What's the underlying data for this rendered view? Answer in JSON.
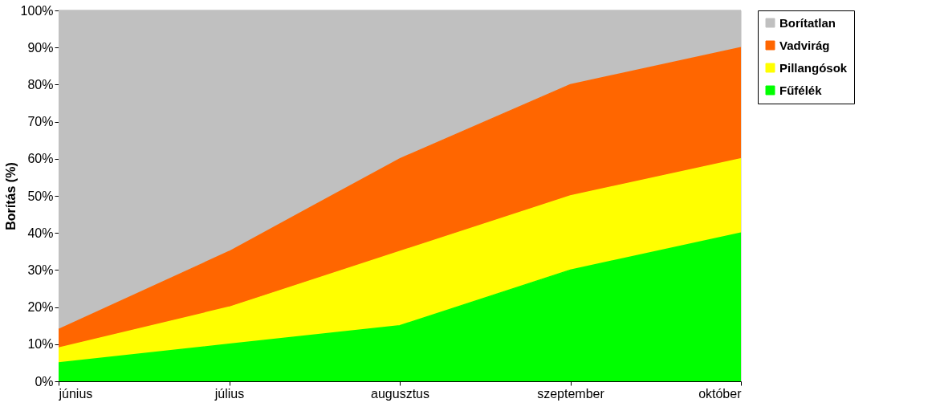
{
  "chart_data": {
    "type": "area",
    "stacked": true,
    "ylabel": "Borítás (%)",
    "categories": [
      "június",
      "július",
      "augusztus",
      "szeptember",
      "október"
    ],
    "series": [
      {
        "name": "Fűfélék",
        "color": "#00ff00",
        "values": [
          5,
          10,
          15,
          30,
          40
        ]
      },
      {
        "name": "Pillangósok",
        "color": "#ffff00",
        "values": [
          4,
          10,
          20,
          20,
          20
        ]
      },
      {
        "name": "Vadvirág",
        "color": "#ff6600",
        "values": [
          5,
          15,
          25,
          30,
          30
        ]
      },
      {
        "name": "Borítatlan",
        "color": "#c0c0c0",
        "values": [
          86,
          65,
          40,
          20,
          10
        ]
      }
    ],
    "ylim": [
      0,
      100
    ],
    "yticks": [
      {
        "value": 0,
        "label": "0%"
      },
      {
        "value": 10,
        "label": "10%"
      },
      {
        "value": 20,
        "label": "20%"
      },
      {
        "value": 30,
        "label": "30%"
      },
      {
        "value": 40,
        "label": "40%"
      },
      {
        "value": 50,
        "label": "50%"
      },
      {
        "value": 60,
        "label": "60%"
      },
      {
        "value": 70,
        "label": "70%"
      },
      {
        "value": 80,
        "label": "80%"
      },
      {
        "value": 90,
        "label": "90%"
      },
      {
        "value": 100,
        "label": "100%"
      }
    ],
    "grid": false,
    "legend": "right"
  }
}
